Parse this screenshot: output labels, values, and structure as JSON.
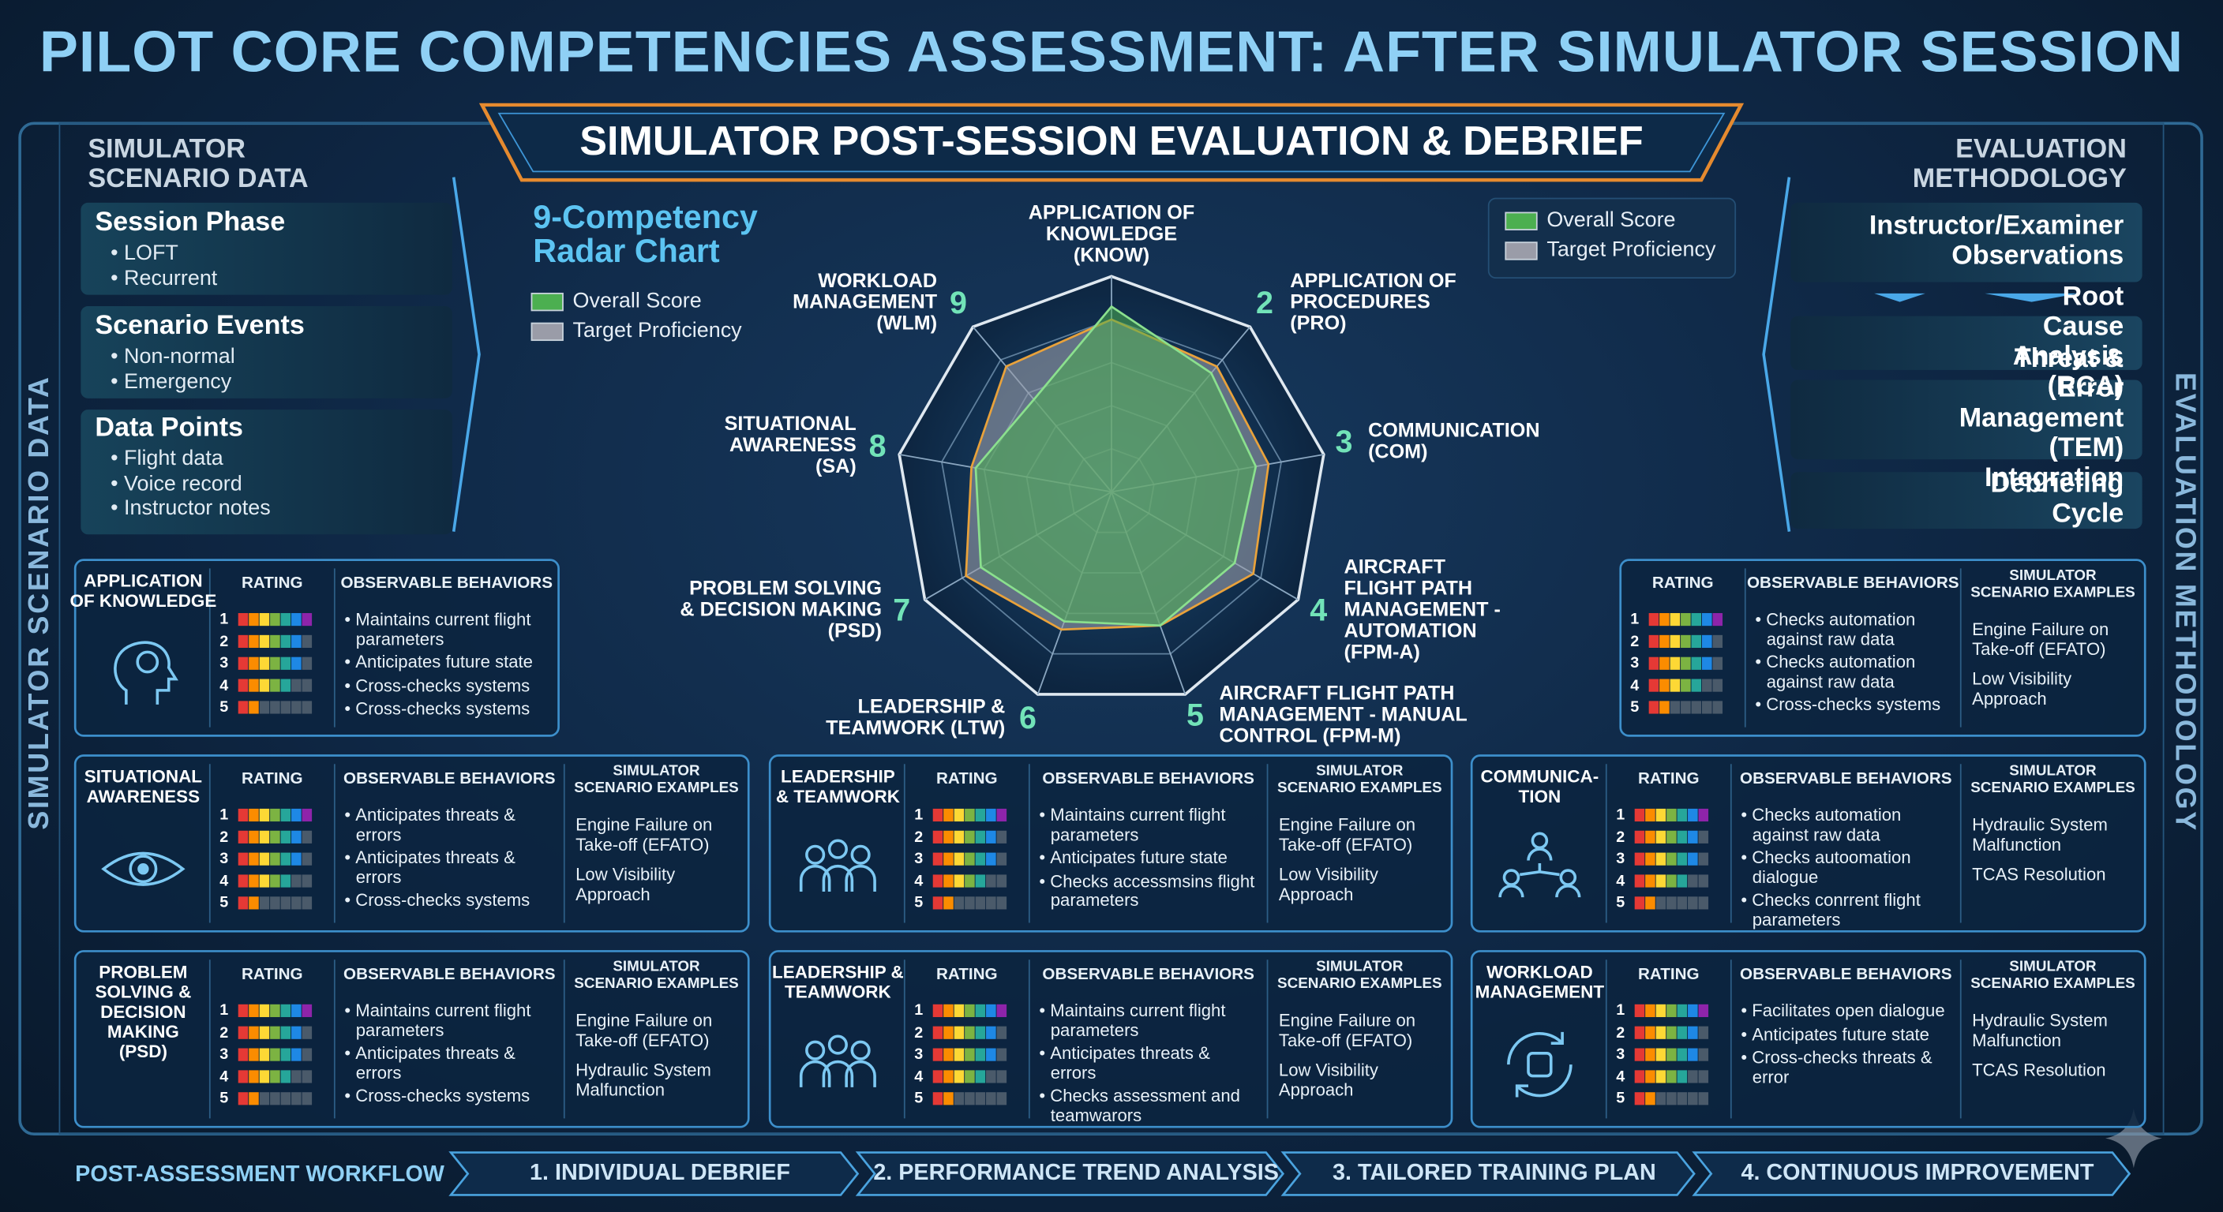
{
  "title": "PILOT CORE COMPETENCIES ASSESSMENT: AFTER SIMULATOR SESSION",
  "subtitle": "SIMULATOR POST-SESSION EVALUATION & DEBRIEF",
  "left_panel": {
    "title": "SIMULATOR\nSCENARIO DATA",
    "side_label": "SIMULATOR SCENARIO DATA",
    "sections": [
      {
        "heading": "Session Phase",
        "items": [
          "LOFT",
          "Recurrent"
        ]
      },
      {
        "heading": "Scenario Events",
        "items": [
          "Non-normal",
          "Emergency"
        ]
      },
      {
        "heading": "Data Points",
        "items": [
          "Flight data",
          "Voice record",
          "Instructor notes"
        ]
      }
    ]
  },
  "right_panel": {
    "title": "EVALUATION\nMETHODOLOGY",
    "side_label": "EVALUATION METHODOLOGY",
    "items": [
      "Instructor/Examiner\nObservations",
      "Root Cause Analysis (RCA)",
      "Threat & Error\nManagement (TEM) Integration",
      "Debriefing Cycle"
    ]
  },
  "chart_data": {
    "type": "radar",
    "title": "9-Competency\nRadar Chart",
    "categories": [
      "APPLICATION OF\nKNOWLEDGE\n(KNOW)",
      "APPLICATION OF\nPROCEDURES\n(PRO)",
      "COMMUNICATION\n(COM)",
      "AIRCRAFT\nFLIGHT PATH\nMANAGEMENT -\nAUTOMATION\n(FPM-A)",
      "AIRCRAFT FLIGHT PATH\nMANAGEMENT - MANUAL\nCONTROL (FPM-M)",
      "LEADERSHIP &\nTEAMWORK (LTW)",
      "PROBLEM SOLVING\n& DECISION MAKING\n(PSD)",
      "SITUATIONAL\nAWARENESS\n(SA)",
      "WORKLOAD\nMANAGEMENT\n(WLM)"
    ],
    "axis_numbers": [
      null,
      2,
      3,
      4,
      5,
      6,
      7,
      8,
      9
    ],
    "rlim": [
      0,
      5
    ],
    "grid": true,
    "series": [
      {
        "name": "Overall Score",
        "color": "#4caf50",
        "values": [
          4.3,
          3.6,
          3.4,
          3.3,
          3.3,
          3.2,
          3.5,
          3.2,
          2.8
        ]
      },
      {
        "name": "Target Proficiency",
        "color": "#9a9ca8",
        "values": [
          4.0,
          3.8,
          3.7,
          3.8,
          3.3,
          3.4,
          3.9,
          3.3,
          3.8
        ]
      }
    ]
  },
  "competency_cards": {
    "column_headers": {
      "rating": "RATING",
      "behaviors": "OBSERVABLE BEHAVIORS",
      "examples": "SIMULATOR\nSCENARIO EXAMPLES"
    },
    "rating_levels": [
      1,
      2,
      3,
      4,
      5
    ],
    "cards": [
      {
        "title": "APPLICATION\nOF KNOWLEDGE",
        "behaviors": [
          "Maintains current flight parameters",
          "Anticipates future state",
          "Cross-checks systems",
          "Cross-checks systems"
        ]
      },
      {
        "behaviors": [
          "Checks automation against raw data",
          "Checks automation against raw data",
          "Cross-checks systems"
        ],
        "examples": [
          "Engine Failure on Take-off (EFATO)",
          "Low Visibility Approach"
        ]
      },
      {
        "title": "SITUATIONAL\nAWARENESS",
        "behaviors": [
          "Anticipates threats & errors",
          "Anticipates threats & errors",
          "Cross-checks systems"
        ],
        "examples": [
          "Engine Failure on Take-off (EFATO)",
          "Low Visibility Approach"
        ]
      },
      {
        "title": "LEADERSHIP\n& TEAMWORK",
        "behaviors": [
          "Maintains current flight parameters",
          "Anticipates future state",
          "Checks accessmsins flight parameters"
        ],
        "examples": [
          "Engine Failure on Take-off (EFATO)",
          "Low Visibility Approach"
        ]
      },
      {
        "title": "COMMUNICA-\nTION",
        "behaviors": [
          "Checks automation against raw data",
          "Checks autoomation dialogue",
          "Checks conrrent flight parameters"
        ],
        "examples": [
          "Hydraulic System Malfunction",
          "TCAS Resolution"
        ]
      },
      {
        "title": "PROBLEM\nSOLVING &\nDECISION\nMAKING\n(PSD)",
        "behaviors": [
          "Maintains current flight parameters",
          "Anticipates threats & errors",
          "Cross-checks systems"
        ],
        "examples": [
          "Engine Failure on Take-off (EFATO)",
          "Hydraulic System Malfunction"
        ]
      },
      {
        "title": "LEADERSHIP &\nTEAMWORK",
        "behaviors": [
          "Maintains current flight parameters",
          "Anticipates threats & errors",
          "Checks assessment and teamwarors"
        ],
        "examples": [
          "Engine Failure on Take-off (EFATO)",
          "Low Visibility Approach"
        ]
      },
      {
        "title": "WORKLOAD\nMANAGEMENT",
        "behaviors": [
          "Facilitates open dialogue",
          "Anticipates future state",
          "Cross-checks threats & error"
        ],
        "examples": [
          "Hydraulic System Malfunction",
          "TCAS Resolution"
        ]
      }
    ]
  },
  "workflow": {
    "label": "POST-ASSESSMENT WORKFLOW",
    "steps": [
      "1. INDIVIDUAL DEBRIEF",
      "2. PERFORMANCE TREND ANALYSIS",
      "3. TAILORED TRAINING PLAN",
      "4. CONTINUOUS IMPROVEMENT"
    ]
  }
}
